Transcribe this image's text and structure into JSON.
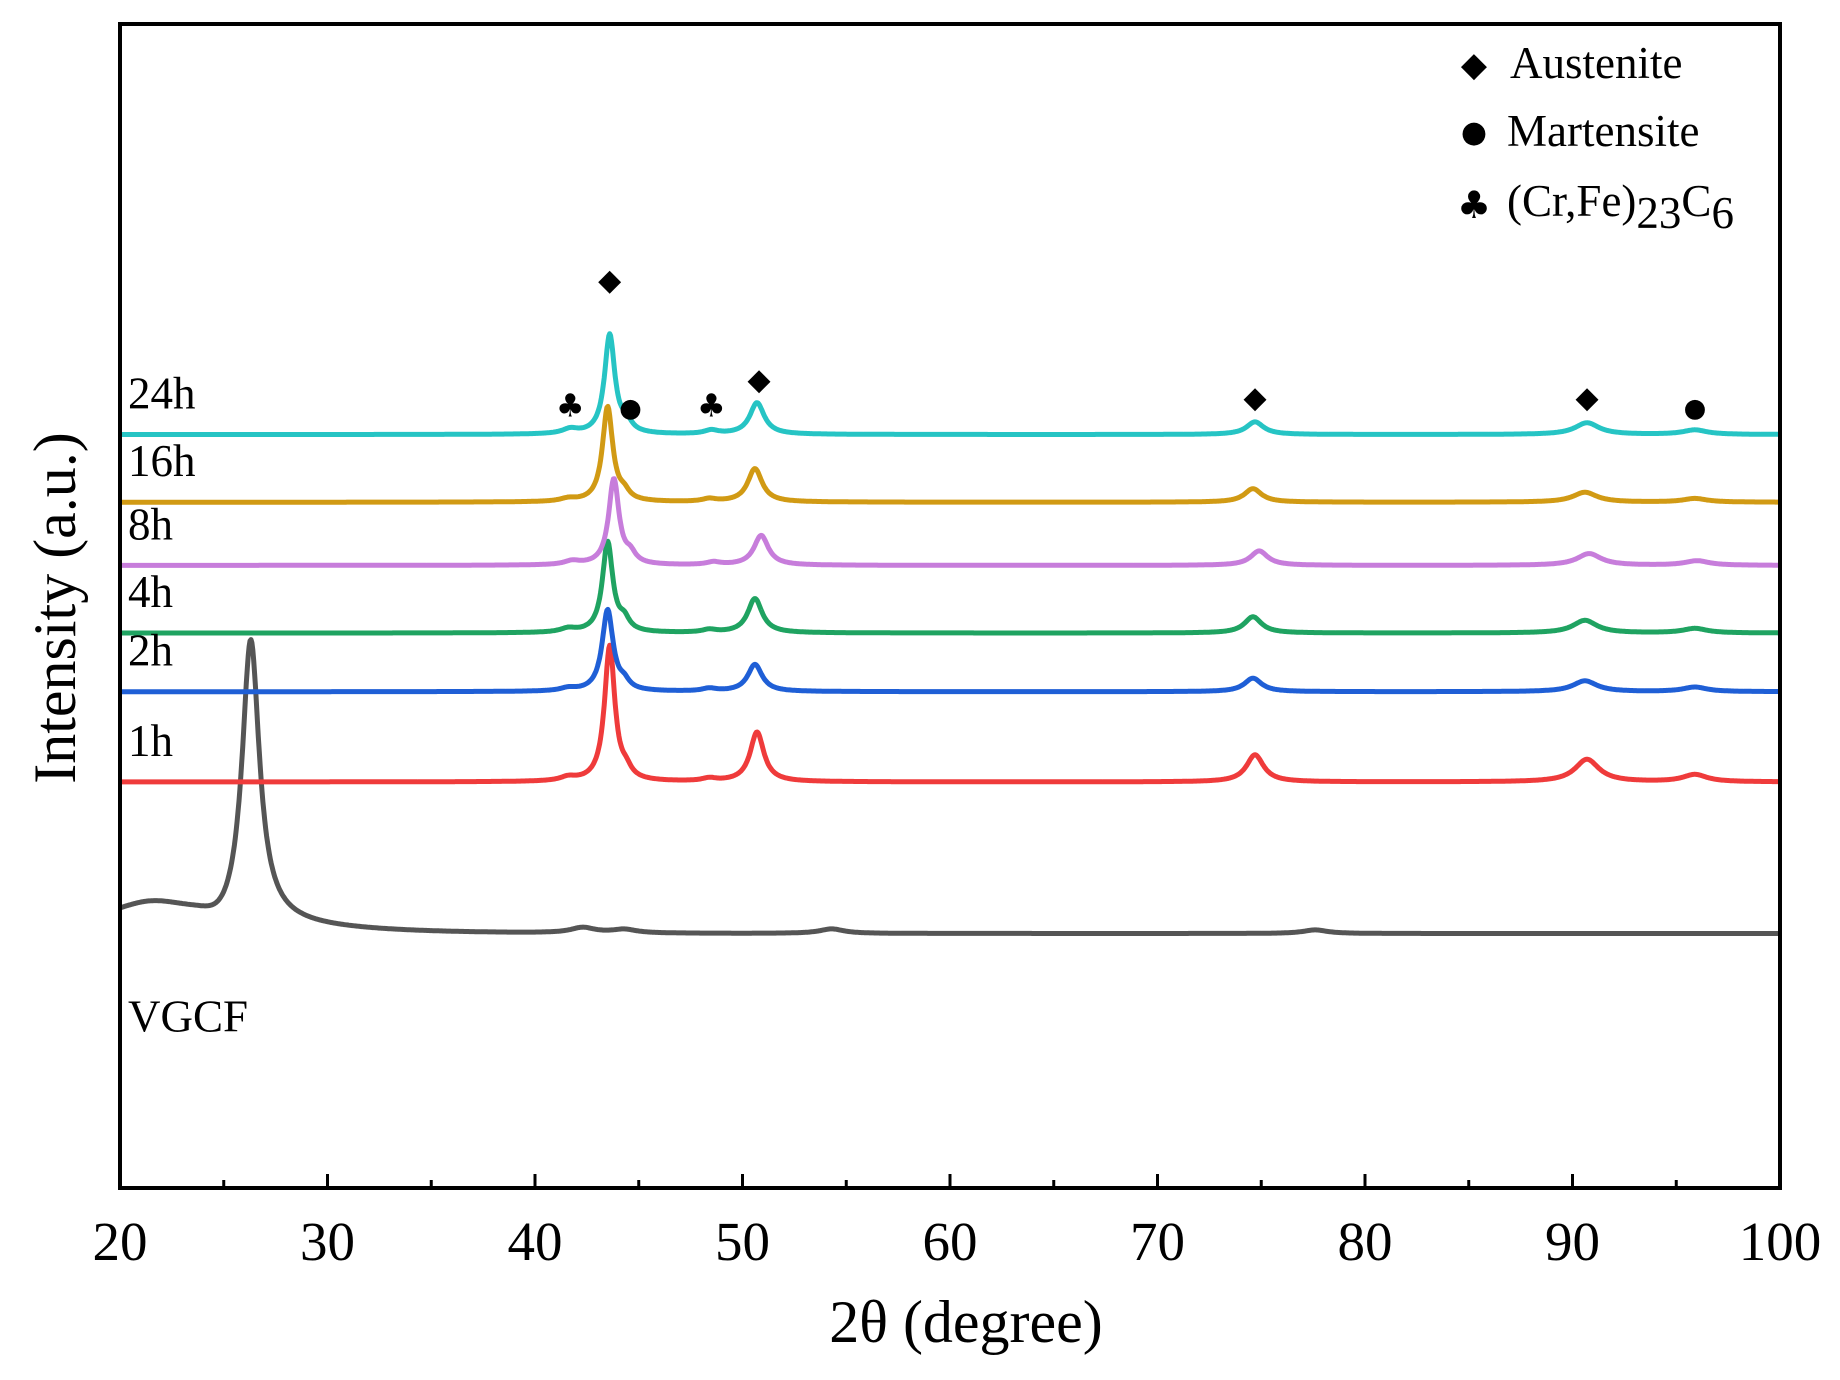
{
  "chart_data": {
    "type": "line",
    "title": "",
    "xlabel": "2θ (degree)",
    "ylabel": "Intensity (a.u.)",
    "xlim": [
      20,
      100
    ],
    "xticks": [
      20,
      30,
      40,
      50,
      60,
      70,
      80,
      90,
      100
    ],
    "xtick_labels": [
      "20",
      "30",
      "40",
      "50",
      "60",
      "70",
      "80",
      "90",
      "100"
    ],
    "minor_xticks": [
      25,
      35,
      45,
      55,
      65,
      75,
      85,
      95
    ],
    "ylim": [
      -2.4,
      10.5
    ],
    "y_ticks_shown": false,
    "series": [
      {
        "name": "VGCF",
        "color": "#555555",
        "offset": 0,
        "baseline": 0.42,
        "bg_left": 0.0,
        "hump": {
          "center": 21.5,
          "amp": 0.15,
          "width": 2.0
        },
        "dip": {
          "center": 25.0,
          "amp": 0.12,
          "width": 1.0
        },
        "peaks": [
          {
            "x": 26.3,
            "h": 3.1,
            "w": 0.5
          },
          {
            "x": 42.3,
            "h": 0.06,
            "w": 0.7
          },
          {
            "x": 44.3,
            "h": 0.04,
            "w": 0.7
          },
          {
            "x": 54.3,
            "h": 0.05,
            "w": 0.7
          },
          {
            "x": 77.6,
            "h": 0.04,
            "w": 0.7
          }
        ]
      },
      {
        "name": "1h",
        "color": "#ef3b3b",
        "offset": 2.1,
        "baseline": 0,
        "peaks": [
          {
            "x": 41.6,
            "h": 0.04,
            "w": 0.45
          },
          {
            "x": 43.6,
            "h": 1.5,
            "w": 0.3
          },
          {
            "x": 44.4,
            "h": 0.09,
            "w": 0.3
          },
          {
            "x": 48.4,
            "h": 0.03,
            "w": 0.4
          },
          {
            "x": 50.7,
            "h": 0.55,
            "w": 0.4
          },
          {
            "x": 74.7,
            "h": 0.3,
            "w": 0.5
          },
          {
            "x": 90.7,
            "h": 0.25,
            "w": 0.7
          },
          {
            "x": 95.9,
            "h": 0.08,
            "w": 0.7
          }
        ]
      },
      {
        "name": "2h",
        "color": "#1f5fd6",
        "offset": 3.1,
        "baseline": 0,
        "peaks": [
          {
            "x": 41.6,
            "h": 0.03,
            "w": 0.45
          },
          {
            "x": 43.5,
            "h": 0.9,
            "w": 0.32
          },
          {
            "x": 44.3,
            "h": 0.08,
            "w": 0.3
          },
          {
            "x": 48.4,
            "h": 0.03,
            "w": 0.4
          },
          {
            "x": 50.6,
            "h": 0.3,
            "w": 0.42
          },
          {
            "x": 74.6,
            "h": 0.15,
            "w": 0.5
          },
          {
            "x": 90.6,
            "h": 0.12,
            "w": 0.7
          },
          {
            "x": 95.9,
            "h": 0.05,
            "w": 0.7
          }
        ]
      },
      {
        "name": "4h",
        "color": "#1fa361",
        "offset": 3.75,
        "baseline": 0,
        "peaks": [
          {
            "x": 41.6,
            "h": 0.04,
            "w": 0.45
          },
          {
            "x": 43.5,
            "h": 1.0,
            "w": 0.3
          },
          {
            "x": 44.3,
            "h": 0.12,
            "w": 0.3
          },
          {
            "x": 48.4,
            "h": 0.03,
            "w": 0.4
          },
          {
            "x": 50.6,
            "h": 0.38,
            "w": 0.42
          },
          {
            "x": 74.6,
            "h": 0.18,
            "w": 0.5
          },
          {
            "x": 90.6,
            "h": 0.14,
            "w": 0.7
          },
          {
            "x": 95.9,
            "h": 0.05,
            "w": 0.7
          }
        ]
      },
      {
        "name": "8h",
        "color": "#c77ddb",
        "offset": 4.5,
        "baseline": 0,
        "peaks": [
          {
            "x": 41.8,
            "h": 0.04,
            "w": 0.45
          },
          {
            "x": 43.8,
            "h": 0.95,
            "w": 0.3
          },
          {
            "x": 44.6,
            "h": 0.1,
            "w": 0.3
          },
          {
            "x": 48.6,
            "h": 0.03,
            "w": 0.4
          },
          {
            "x": 50.9,
            "h": 0.33,
            "w": 0.42
          },
          {
            "x": 74.9,
            "h": 0.16,
            "w": 0.5
          },
          {
            "x": 90.8,
            "h": 0.13,
            "w": 0.7
          },
          {
            "x": 96.0,
            "h": 0.05,
            "w": 0.7
          }
        ]
      },
      {
        "name": "16h",
        "color": "#d19a14",
        "offset": 5.2,
        "baseline": 0,
        "peaks": [
          {
            "x": 41.6,
            "h": 0.03,
            "w": 0.45
          },
          {
            "x": 43.5,
            "h": 1.05,
            "w": 0.3
          },
          {
            "x": 44.3,
            "h": 0.08,
            "w": 0.3
          },
          {
            "x": 48.4,
            "h": 0.03,
            "w": 0.4
          },
          {
            "x": 50.6,
            "h": 0.37,
            "w": 0.42
          },
          {
            "x": 74.6,
            "h": 0.15,
            "w": 0.5
          },
          {
            "x": 90.6,
            "h": 0.11,
            "w": 0.7
          },
          {
            "x": 95.9,
            "h": 0.04,
            "w": 0.7
          }
        ]
      },
      {
        "name": "24h",
        "color": "#26c4c4",
        "offset": 5.95,
        "baseline": 0,
        "peaks": [
          {
            "x": 41.7,
            "h": 0.05,
            "w": 0.45
          },
          {
            "x": 43.6,
            "h": 1.1,
            "w": 0.3
          },
          {
            "x": 44.4,
            "h": 0.11,
            "w": 0.3
          },
          {
            "x": 48.5,
            "h": 0.04,
            "w": 0.4
          },
          {
            "x": 50.7,
            "h": 0.35,
            "w": 0.42
          },
          {
            "x": 74.7,
            "h": 0.14,
            "w": 0.5
          },
          {
            "x": 90.7,
            "h": 0.13,
            "w": 0.7
          },
          {
            "x": 95.9,
            "h": 0.05,
            "w": 0.7
          }
        ]
      }
    ],
    "phase_markers": [
      {
        "phase": "Austenite",
        "symbol": "◆",
        "x": 43.6,
        "y": 7.55
      },
      {
        "phase": "Martensite",
        "symbol": "●",
        "x": 44.6,
        "y": 6.15
      },
      {
        "phase": "(Cr,Fe)23C6",
        "symbol": "♣",
        "x": 41.7,
        "y": 6.15
      },
      {
        "phase": "(Cr,Fe)23C6",
        "symbol": "♣",
        "x": 48.5,
        "y": 6.15
      },
      {
        "phase": "Austenite",
        "symbol": "◆",
        "x": 50.8,
        "y": 6.45
      },
      {
        "phase": "Austenite",
        "symbol": "◆",
        "x": 74.7,
        "y": 6.25
      },
      {
        "phase": "Austenite",
        "symbol": "◆",
        "x": 90.7,
        "y": 6.25
      },
      {
        "phase": "Martensite",
        "symbol": "●",
        "x": 95.9,
        "y": 6.15
      }
    ],
    "legend": {
      "position": "top-right",
      "entries": [
        {
          "symbol": "◆",
          "label": "Austenite"
        },
        {
          "symbol": "●",
          "label": "Martensite"
        },
        {
          "symbol": "♣",
          "label_main": "(Cr,Fe)",
          "label_sub1": "23",
          "label_mid": "C",
          "label_sub2": "6"
        }
      ]
    }
  }
}
